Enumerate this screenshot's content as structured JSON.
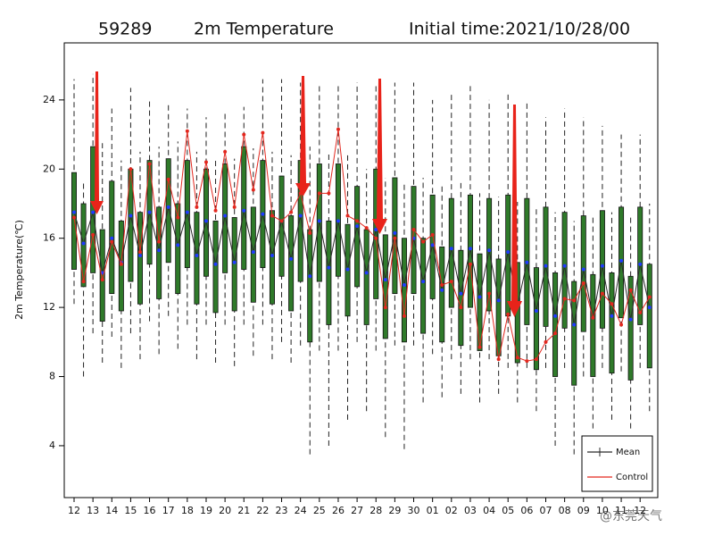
{
  "chart_data": {
    "type": "box",
    "station": "59289",
    "title": "2m Temperature",
    "subtitle": "Initial time:2021/10/28/00",
    "y_label": "2m Temperature(℃)",
    "watermark": "@东莞天气",
    "categories": [
      "12",
      null,
      "13",
      null,
      "14",
      null,
      "15",
      null,
      "16",
      null,
      "17",
      null,
      "18",
      null,
      "19",
      null,
      "20",
      null,
      "21",
      null,
      "22",
      null,
      "23",
      null,
      "24",
      null,
      "25",
      null,
      "26",
      null,
      "27",
      null,
      "28",
      null,
      "29",
      null,
      "30",
      null,
      "01",
      null,
      "02",
      null,
      "03",
      null,
      "04",
      null,
      "05",
      null,
      "06",
      null,
      "07",
      null,
      "08",
      null,
      "09",
      null,
      "10",
      null,
      "11",
      null,
      "12",
      null
    ],
    "boxes": {
      "color": "#2f7a2a",
      "min": [
        12.2,
        8.0,
        10.5,
        8.8,
        10.3,
        8.5,
        10.5,
        9.0,
        11.2,
        9.3,
        11.5,
        9.6,
        11.0,
        9.0,
        11.0,
        8.8,
        11.0,
        8.6,
        11.0,
        9.2,
        11.0,
        9.0,
        10.0,
        8.8,
        9.8,
        3.5,
        9.5,
        4.0,
        9.5,
        5.5,
        10.0,
        6.0,
        9.5,
        4.5,
        9.8,
        3.8,
        9.8,
        6.5,
        9.3,
        6.8,
        9.0,
        7.0,
        9.0,
        6.5,
        9.0,
        7.0,
        8.5,
        6.5,
        8.5,
        6.0,
        8.5,
        4.0,
        8.5,
        3.5,
        8.0,
        5.0,
        8.5,
        5.5,
        8.3,
        5.0,
        8.5,
        6.0
      ],
      "q1": [
        14.2,
        13.2,
        14.0,
        11.2,
        12.8,
        11.8,
        13.5,
        12.2,
        14.5,
        12.5,
        14.6,
        12.8,
        14.3,
        12.2,
        13.8,
        11.7,
        14.0,
        11.8,
        14.2,
        12.3,
        14.3,
        12.2,
        13.8,
        11.8,
        13.5,
        10.0,
        13.5,
        11.0,
        13.8,
        11.5,
        13.2,
        11.0,
        12.5,
        10.2,
        12.8,
        10.0,
        12.8,
        10.5,
        12.5,
        10.0,
        12.0,
        9.8,
        12.0,
        9.5,
        11.8,
        9.2,
        11.5,
        8.8,
        11.0,
        8.4,
        10.9,
        8.0,
        10.8,
        7.5,
        10.6,
        8.0,
        10.8,
        8.2,
        11.4,
        7.8,
        11.0,
        8.5
      ],
      "q3": [
        19.8,
        18.0,
        21.3,
        16.5,
        19.3,
        17.0,
        20.0,
        17.5,
        20.5,
        17.8,
        20.6,
        18.0,
        20.5,
        17.5,
        20.0,
        17.0,
        20.3,
        17.2,
        21.3,
        17.8,
        20.5,
        17.6,
        19.6,
        17.3,
        20.5,
        16.5,
        20.3,
        17.0,
        20.3,
        16.8,
        19.0,
        16.5,
        20.0,
        16.2,
        19.5,
        16.0,
        19.0,
        16.0,
        18.5,
        15.5,
        18.3,
        15.3,
        18.5,
        15.1,
        18.3,
        14.8,
        18.5,
        14.6,
        18.3,
        14.3,
        17.8,
        14.0,
        17.5,
        13.5,
        17.3,
        13.9,
        17.6,
        14.0,
        17.8,
        13.8,
        17.8,
        14.5
      ],
      "max": [
        25.2,
        19.3,
        25.5,
        21.5,
        23.5,
        20.5,
        24.7,
        21.0,
        24.0,
        21.3,
        23.8,
        21.6,
        23.5,
        21.0,
        23.0,
        20.5,
        23.3,
        20.6,
        23.6,
        21.2,
        25.2,
        21.0,
        25.2,
        20.8,
        25.0,
        21.3,
        25.0,
        21.0,
        24.8,
        21.0,
        25.0,
        20.0,
        25.0,
        19.5,
        25.0,
        19.3,
        25.0,
        19.5,
        24.0,
        19.0,
        24.5,
        19.2,
        24.8,
        18.6,
        24.0,
        18.4,
        24.5,
        18.1,
        24.0,
        17.8,
        23.0,
        17.5,
        23.5,
        17.0,
        23.0,
        17.4,
        22.5,
        17.5,
        22.0,
        17.3,
        22.0,
        18.0
      ]
    },
    "series": [
      {
        "name": "Mean",
        "color": "#2b2b2b",
        "marker_color": "#1f3bff",
        "values": [
          17.5,
          15.7,
          17.5,
          14.0,
          16.0,
          14.6,
          17.3,
          15.0,
          17.5,
          15.3,
          17.8,
          15.6,
          17.5,
          15.0,
          17.0,
          14.5,
          17.3,
          14.6,
          17.6,
          15.2,
          17.4,
          15.0,
          17.0,
          14.8,
          17.3,
          13.8,
          17.0,
          14.3,
          17.0,
          14.2,
          16.7,
          14.0,
          16.5,
          13.6,
          16.3,
          13.3,
          16.0,
          13.5,
          15.6,
          13.0,
          15.4,
          12.8,
          15.4,
          12.6,
          15.3,
          12.4,
          15.2,
          12.1,
          14.6,
          11.8,
          14.4,
          11.5,
          14.4,
          11.0,
          14.2,
          11.4,
          14.4,
          11.5,
          14.7,
          11.3,
          14.5,
          12.0
        ]
      },
      {
        "name": "Control",
        "color": "#e3281f",
        "marker_color": "#e3281f",
        "values": [
          17.2,
          13.5,
          16.2,
          13.6,
          15.8,
          14.5,
          20.0,
          15.2,
          20.3,
          15.8,
          19.4,
          17.2,
          22.2,
          17.8,
          20.4,
          17.6,
          21.0,
          17.8,
          22.0,
          18.8,
          22.1,
          17.3,
          17.0,
          17.5,
          18.6,
          16.3,
          18.6,
          18.6,
          22.3,
          17.3,
          17.0,
          16.6,
          16.0,
          12.0,
          16.0,
          11.5,
          16.5,
          15.8,
          16.2,
          13.3,
          13.5,
          12.0,
          14.5,
          9.7,
          12.8,
          9.0,
          11.6,
          9.1,
          8.9,
          9.0,
          10.0,
          10.5,
          12.5,
          12.4,
          13.4,
          11.4,
          12.8,
          12.2,
          11.0,
          13.0,
          11.7,
          12.6
        ]
      }
    ],
    "ylim": [
      1,
      27.3
    ],
    "yticks": [
      4,
      8,
      12,
      16,
      20,
      24
    ],
    "legend": "lower right"
  }
}
